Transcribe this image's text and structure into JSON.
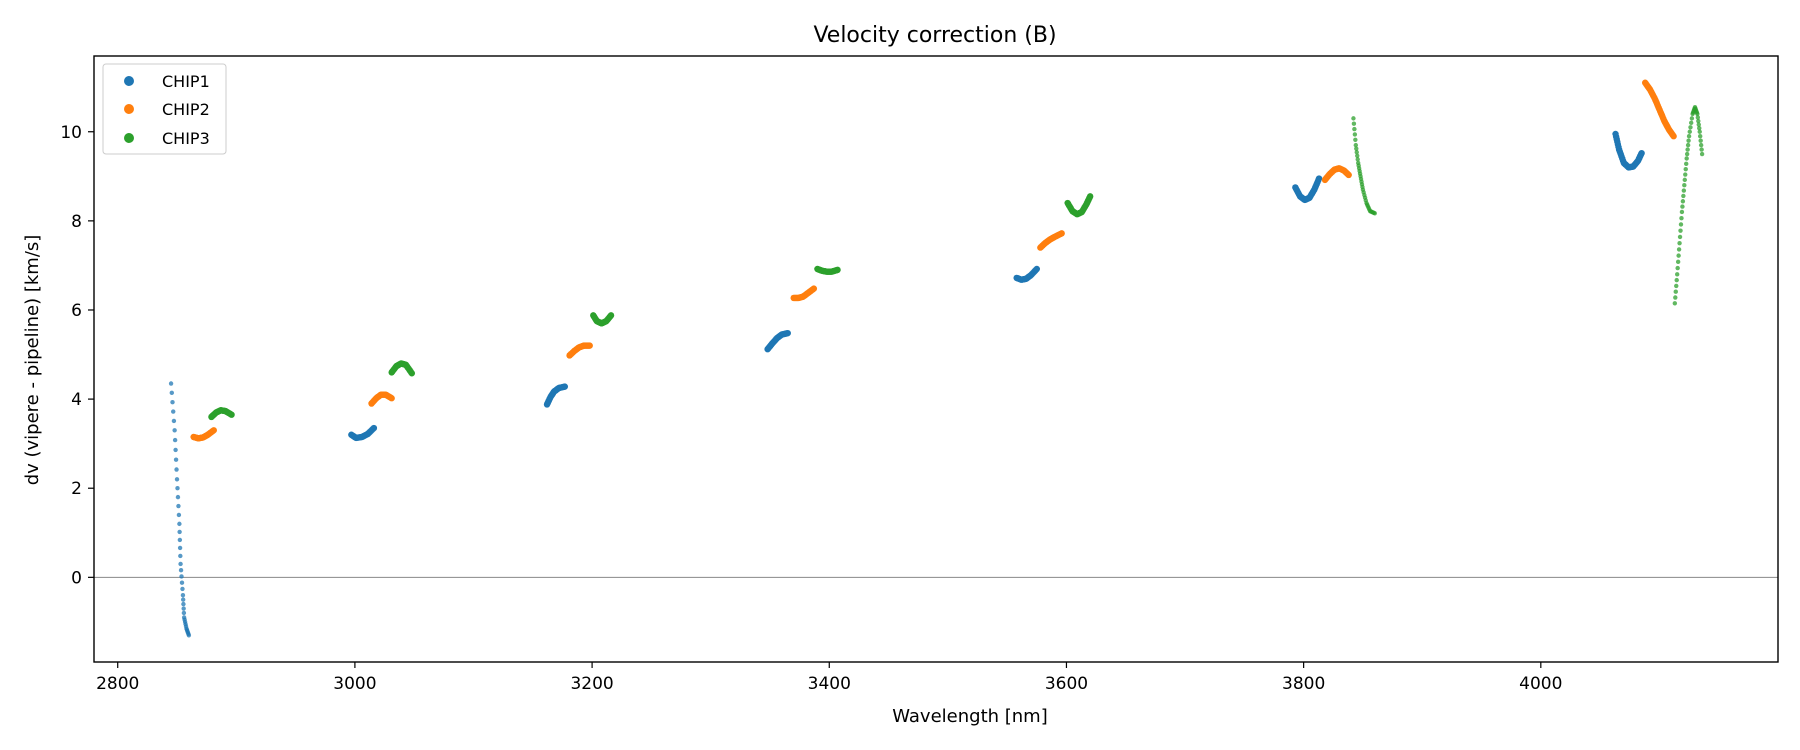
{
  "chart_data": {
    "type": "scatter",
    "title": "Velocity correction (B)",
    "xlabel": "Wavelength [nm]",
    "ylabel": "dv (vipere - pipeline) [km/s]",
    "xlim": [
      2780,
      4200
    ],
    "ylim": [
      -1.9,
      11.7
    ],
    "xticks": [
      2800,
      3000,
      3200,
      3400,
      3600,
      3800,
      4000
    ],
    "yticks": [
      0,
      2,
      4,
      6,
      8,
      10
    ],
    "reference_line_y": 0,
    "grid": false,
    "legend_position": "upper-left",
    "series": [
      {
        "name": "CHIP1",
        "color": "#1f77b4",
        "segments": [
          {
            "x": [
              2845,
              2848,
              2850,
              2852,
              2853,
              2855,
              2856,
              2858,
              2860
            ],
            "y": [
              4.35,
              3.3,
              2.2,
              1.2,
              0.3,
              -0.4,
              -0.9,
              -1.15,
              -1.3
            ]
          },
          {
            "x": [
              2997,
              3001,
              3006,
              3011,
              3016
            ],
            "y": [
              3.2,
              3.13,
              3.15,
              3.22,
              3.35
            ]
          },
          {
            "x": [
              3162,
              3165,
              3168,
              3172,
              3177
            ],
            "y": [
              3.88,
              4.05,
              4.17,
              4.25,
              4.28
            ]
          },
          {
            "x": [
              3348,
              3352,
              3356,
              3360,
              3365
            ],
            "y": [
              5.12,
              5.25,
              5.37,
              5.45,
              5.48
            ]
          },
          {
            "x": [
              3558,
              3562,
              3566,
              3570,
              3575
            ],
            "y": [
              6.72,
              6.68,
              6.7,
              6.78,
              6.92
            ]
          },
          {
            "x": [
              3793,
              3797,
              3801,
              3805,
              3809,
              3813
            ],
            "y": [
              8.75,
              8.55,
              8.47,
              8.52,
              8.7,
              8.95
            ]
          },
          {
            "x": [
              4063,
              4066,
              4070,
              4074,
              4078,
              4082,
              4085
            ],
            "y": [
              9.95,
              9.6,
              9.3,
              9.2,
              9.22,
              9.35,
              9.52
            ]
          }
        ]
      },
      {
        "name": "CHIP2",
        "color": "#ff7f0e",
        "segments": [
          {
            "x": [
              2864,
              2868,
              2872,
              2876,
              2881
            ],
            "y": [
              3.15,
              3.12,
              3.14,
              3.2,
              3.3
            ]
          },
          {
            "x": [
              3014,
              3018,
              3022,
              3026,
              3031
            ],
            "y": [
              3.9,
              4.02,
              4.1,
              4.1,
              4.02
            ]
          },
          {
            "x": [
              3181,
              3185,
              3189,
              3193,
              3198
            ],
            "y": [
              4.98,
              5.08,
              5.16,
              5.2,
              5.2
            ]
          },
          {
            "x": [
              3370,
              3374,
              3378,
              3382,
              3387
            ],
            "y": [
              6.27,
              6.27,
              6.3,
              6.38,
              6.48
            ]
          },
          {
            "x": [
              3578,
              3582,
              3586,
              3590,
              3596
            ],
            "y": [
              7.4,
              7.5,
              7.58,
              7.64,
              7.72
            ]
          },
          {
            "x": [
              3818,
              3822,
              3826,
              3830,
              3834,
              3838
            ],
            "y": [
              8.92,
              9.05,
              9.15,
              9.18,
              9.13,
              9.03
            ]
          },
          {
            "x": [
              4088,
              4092,
              4096,
              4100,
              4104,
              4108,
              4112
            ],
            "y": [
              11.1,
              10.95,
              10.75,
              10.5,
              10.25,
              10.05,
              9.9
            ]
          }
        ]
      },
      {
        "name": "CHIP3",
        "color": "#2ca02c",
        "segments": [
          {
            "x": [
              2879,
              2883,
              2887,
              2891,
              2896
            ],
            "y": [
              3.6,
              3.7,
              3.75,
              3.73,
              3.65
            ]
          },
          {
            "x": [
              3031,
              3035,
              3039,
              3043,
              3048
            ],
            "y": [
              4.6,
              4.74,
              4.8,
              4.77,
              4.58
            ]
          },
          {
            "x": [
              3201,
              3204,
              3208,
              3212,
              3216
            ],
            "y": [
              5.88,
              5.75,
              5.7,
              5.75,
              5.88
            ]
          },
          {
            "x": [
              3390,
              3394,
              3398,
              3402,
              3407
            ],
            "y": [
              6.92,
              6.88,
              6.86,
              6.86,
              6.9
            ]
          },
          {
            "x": [
              3601,
              3605,
              3609,
              3613,
              3617,
              3620
            ],
            "y": [
              8.4,
              8.22,
              8.15,
              8.2,
              8.38,
              8.55
            ]
          },
          {
            "x": [
              3842,
              3844,
              3846,
              3848,
              3850,
              3853,
              3856,
              3860
            ],
            "y": [
              10.3,
              9.7,
              9.3,
              9.0,
              8.7,
              8.4,
              8.22,
              8.17
            ]
          },
          {
            "x": [
              4113,
              4115,
              4117,
              4119,
              4121,
              4123,
              4125,
              4128,
              4130,
              4132,
              4134,
              4136
            ],
            "y": [
              6.15,
              6.8,
              7.5,
              8.2,
              8.8,
              9.4,
              9.9,
              10.4,
              10.55,
              10.4,
              10.0,
              9.5
            ]
          }
        ]
      }
    ]
  }
}
